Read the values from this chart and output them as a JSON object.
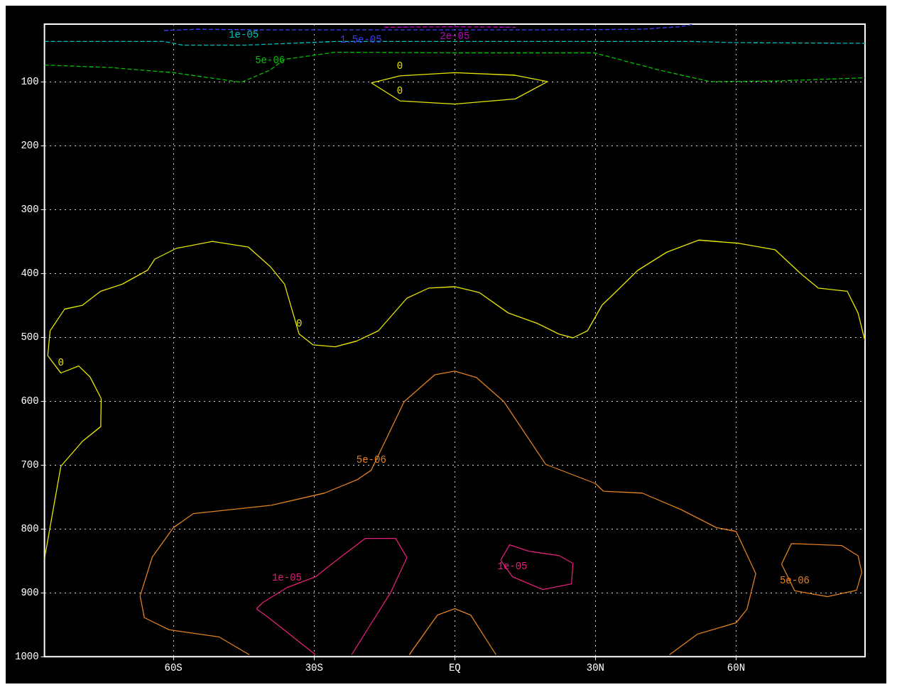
{
  "chart_data": {
    "type": "line",
    "xlim": [
      -87.5,
      87.5
    ],
    "ylim": [
      1000,
      10
    ],
    "xticks": [
      {
        "value": -60,
        "label": "60S"
      },
      {
        "value": -30,
        "label": "30S"
      },
      {
        "value": 0,
        "label": "EQ"
      },
      {
        "value": 30,
        "label": "30N"
      },
      {
        "value": 60,
        "label": "60N"
      }
    ],
    "yticks": [
      100,
      200,
      300,
      400,
      500,
      600,
      700,
      800,
      900,
      1000
    ],
    "grid": true,
    "legend": false,
    "marker": "none",
    "series": [
      {
        "name": "2e-05",
        "color": "#c000c0",
        "line_style": "dashed",
        "x": [
          -15,
          0,
          13
        ],
        "values": [
          15,
          14,
          15
        ]
      },
      {
        "name": "1.5e-05",
        "color": "#3c3cff",
        "line_style": "dashed",
        "x": [
          -62,
          -55,
          -40,
          -20,
          0,
          20,
          40,
          48,
          51
        ],
        "values": [
          20,
          18,
          19,
          19,
          19,
          19,
          18,
          14,
          10
        ]
      },
      {
        "name": "1e-05",
        "color": "#00c0c0",
        "line_style": "dashed",
        "x": [
          -87.5,
          -62,
          -58,
          -45,
          -35,
          -25,
          0,
          30,
          50,
          60,
          87.5
        ],
        "values": [
          37,
          37,
          43,
          43,
          40,
          37,
          37,
          37,
          37,
          39,
          40
        ]
      },
      {
        "name": "5e-06",
        "color": "#00c000",
        "line_style": "dashed",
        "x": [
          -87.5,
          -73.2,
          -60,
          -45.5,
          -39.4,
          -36.3,
          -25.5,
          0,
          29.8,
          43.7,
          54.5,
          68.3,
          87.5
        ],
        "values": [
          74,
          78,
          86,
          101,
          82,
          65,
          54,
          55,
          55,
          82,
          100,
          99,
          94
        ]
      },
      {
        "name": "0",
        "color": "#e6e600",
        "line_style": "solid",
        "x": [
          -17.8,
          -11.7,
          0,
          12.9,
          19.8
        ],
        "values": [
          102,
          91,
          86,
          90,
          100
        ]
      },
      {
        "name": "0",
        "color": "#e6e600",
        "line_style": "solid",
        "x": [
          -17.8,
          -11.7,
          0,
          12.9,
          19.8
        ],
        "values": [
          102,
          130,
          135,
          127,
          100
        ]
      },
      {
        "color": "#e6e600",
        "line_style": "solid",
        "x": [
          -87.5,
          -84,
          -79.4,
          -75.5,
          -75.4
        ],
        "values": [
          847,
          702,
          663,
          640,
          596
        ]
      },
      {
        "name": "0",
        "color": "#e6e600",
        "line_style": "solid",
        "x": [
          -86.8,
          -84,
          -80.2,
          -77.8,
          -75.4
        ],
        "values": [
          529,
          556,
          545,
          562,
          596
        ]
      },
      {
        "name": "0",
        "color": "#e6e600",
        "line_style": "solid",
        "x": [
          -86.8,
          -86.3,
          -83.2,
          -79.4,
          -75.5,
          -70.9,
          -65.5,
          -64,
          -59.4,
          -51.7,
          -44,
          -39.4,
          -36.3,
          -33.2,
          -30.2,
          -25.5,
          -20.9,
          -16.3,
          -10.2,
          -5.5,
          0,
          5.2,
          11.4,
          17.5,
          22.2,
          25.2,
          28.3,
          31.4,
          34.5,
          39.1,
          45.2,
          52,
          60.6,
          68.3,
          73.7,
          77.5,
          83.7,
          86,
          87.5
        ],
        "values": [
          529,
          490,
          456,
          450,
          428,
          417,
          395,
          378,
          361,
          350,
          359,
          389,
          417,
          495,
          512,
          515,
          506,
          490,
          439,
          423,
          421,
          430,
          462,
          478,
          495,
          501,
          490,
          450,
          428,
          395,
          367,
          348,
          353,
          363,
          400,
          423,
          428,
          462,
          506
        ]
      },
      {
        "color": "#e08020",
        "line_style": "solid",
        "x": [
          -67.1,
          -66.2,
          -60.9,
          -50.3,
          -43.8
        ],
        "values": [
          905,
          939,
          958,
          969,
          997
        ]
      },
      {
        "name": "5e-06",
        "color": "#e08020",
        "line_style": "solid",
        "x": [
          -67.1,
          -64.5,
          -60,
          -55.7,
          -39.1,
          -27.8,
          -20.8,
          -17.8,
          -10.8,
          -4.3,
          0,
          4.6,
          10.5,
          19.4,
          30,
          31.7,
          40,
          48.3,
          55.8,
          60,
          64.2
        ],
        "values": [
          905,
          844,
          798,
          776,
          763,
          744,
          723,
          708,
          601,
          559,
          553,
          563,
          601,
          699,
          729,
          741,
          744,
          770,
          798,
          804,
          870
        ]
      },
      {
        "color": "#e08020",
        "line_style": "solid",
        "x": [
          45.8,
          51.7,
          60,
          62.3,
          64.2
        ],
        "values": [
          997,
          965,
          947,
          926,
          870
        ]
      },
      {
        "color": "#e08020",
        "line_style": "solid",
        "x": [
          -9.7,
          -3.7,
          0,
          3.4,
          8.8
        ],
        "values": [
          997,
          935,
          925,
          935,
          997
        ]
      },
      {
        "color": "#e08020",
        "line_style": "solid",
        "x": [
          69.7,
          71.8,
          82.5,
          86,
          86.8
        ],
        "values": [
          855,
          823,
          826,
          842,
          868
        ]
      },
      {
        "name": "5e-06",
        "color": "#e08020",
        "line_style": "solid",
        "x": [
          69.7,
          72.5,
          79.5,
          85.7,
          86.8
        ],
        "values": [
          855,
          897,
          906,
          896,
          868
        ]
      },
      {
        "color": "#e0207a",
        "line_style": "solid",
        "x": [
          -42.3,
          -39.7,
          -29.7
        ],
        "values": [
          925,
          939,
          997
        ]
      },
      {
        "name": "1e-05",
        "color": "#e0207a",
        "line_style": "solid",
        "x": [
          -42.3,
          -40.9,
          -35.8,
          -29.7,
          -25.2,
          -19.1,
          -12.6,
          -10.2
        ],
        "values": [
          925,
          915,
          892,
          875,
          849,
          815,
          815,
          845
        ]
      },
      {
        "color": "#e0207a",
        "line_style": "solid",
        "x": [
          -22,
          -13.7,
          -10.2
        ],
        "values": [
          997,
          900,
          845
        ]
      },
      {
        "color": "#e0207a",
        "line_style": "solid",
        "x": [
          9.8,
          11.7,
          15.8,
          22.3,
          25.2
        ],
        "values": [
          849,
          825,
          835,
          842,
          854
        ]
      },
      {
        "name": "1e-05",
        "color": "#e0207a",
        "line_style": "solid",
        "x": [
          9.8,
          12.3,
          18.8,
          24.9,
          25.2
        ],
        "values": [
          849,
          875,
          895,
          886,
          854
        ]
      }
    ]
  }
}
